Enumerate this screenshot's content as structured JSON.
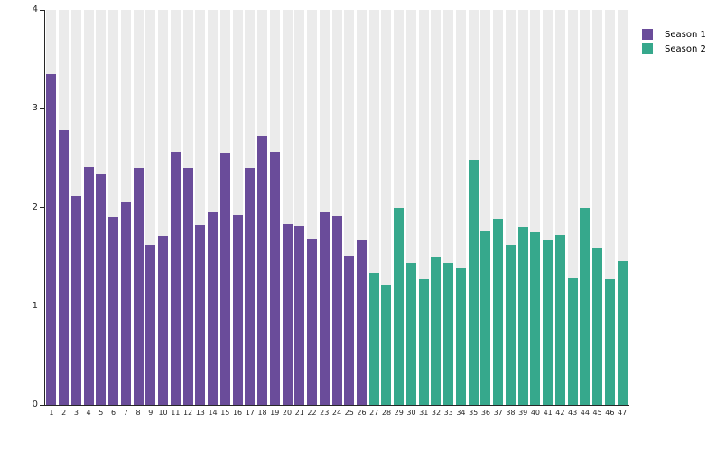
{
  "chart_data": {
    "type": "bar",
    "title": "",
    "xlabel": "",
    "ylabel": "",
    "categories": [
      "1",
      "2",
      "3",
      "4",
      "5",
      "6",
      "7",
      "8",
      "9",
      "10",
      "11",
      "12",
      "13",
      "14",
      "15",
      "16",
      "17",
      "18",
      "19",
      "20",
      "21",
      "22",
      "23",
      "24",
      "25",
      "26",
      "27",
      "28",
      "29",
      "30",
      "31",
      "32",
      "33",
      "34",
      "35",
      "36",
      "37",
      "38",
      "39",
      "40",
      "41",
      "42",
      "43",
      "44",
      "45",
      "46",
      "47"
    ],
    "series": [
      {
        "name": "Season 1",
        "color": "#6a4c9a",
        "category_range": [
          1,
          26
        ],
        "values": [
          3.35,
          2.78,
          2.11,
          2.41,
          2.34,
          1.9,
          2.06,
          2.4,
          1.62,
          1.71,
          2.56,
          2.4,
          1.82,
          1.96,
          2.55,
          1.92,
          2.4,
          2.73,
          2.56,
          1.83,
          1.81,
          1.68,
          1.96,
          1.91,
          1.51,
          1.67
        ]
      },
      {
        "name": "Season 2",
        "color": "#36a88c",
        "category_range": [
          27,
          47
        ],
        "values": [
          1.34,
          1.22,
          2.0,
          1.44,
          1.27,
          1.5,
          1.44,
          1.39,
          2.48,
          1.77,
          1.89,
          1.62,
          1.8,
          1.75,
          1.67,
          1.72,
          1.28,
          2.0,
          1.59,
          1.27,
          1.46
        ]
      }
    ],
    "ylim": [
      0,
      4
    ],
    "yticks": [
      "0",
      "1",
      "2",
      "3",
      "4"
    ],
    "legend_position": "top-right",
    "grid": false,
    "background_bands": true,
    "band_color": "#ebebeb",
    "axis_color": "#262626",
    "text_color": "#262626"
  }
}
